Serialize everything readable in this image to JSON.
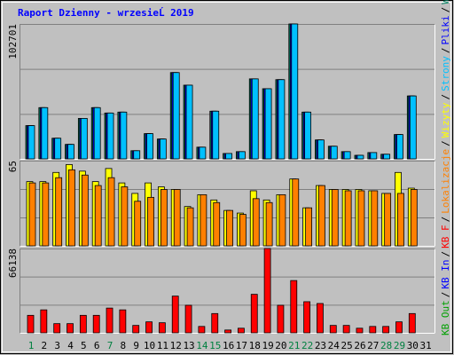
{
  "title": "Raport Dzienny -  wrzesieĹ  2019",
  "categories": [
    "1",
    "2",
    "3",
    "4",
    "5",
    "6",
    "7",
    "8",
    "9",
    "10",
    "11",
    "12",
    "13",
    "14",
    "15",
    "16",
    "17",
    "18",
    "19",
    "20",
    "21",
    "22",
    "23",
    "24",
    "25",
    "26",
    "27",
    "28",
    "29",
    "30",
    "31"
  ],
  "category_colors": [
    "#008040",
    "#000000",
    "#000000",
    "#000000",
    "#000000",
    "#000000",
    "#008040",
    "#000000",
    "#000000",
    "#000000",
    "#000000",
    "#000000",
    "#000000",
    "#008040",
    "#008040",
    "#000000",
    "#000000",
    "#000000",
    "#000000",
    "#000000",
    "#008040",
    "#008040",
    "#000000",
    "#000000",
    "#000000",
    "#000000",
    "#000000",
    "#008040",
    "#008040",
    "#000000",
    "#000000"
  ],
  "legend_separator": "/",
  "chart_data": [
    {
      "type": "bar",
      "ylim": [
        0,
        102701
      ],
      "yticks": [
        102701
      ],
      "grid_divisions": 3,
      "series": [
        {
          "name": "Wywołania",
          "color": "#008060",
          "values": [
            25300,
            39000,
            15700,
            11000,
            30800,
            39000,
            34900,
            35600,
            6200,
            19200,
            15100,
            65700,
            56100,
            8900,
            36300,
            4100,
            5500,
            60900,
            53400,
            60300,
            102701,
            35600,
            14400,
            9600,
            5500,
            2700,
            4800,
            3500,
            18500,
            47900,
            null
          ]
        },
        {
          "name": "Pliki",
          "color": "#0000ff",
          "values": [
            25300,
            39000,
            15700,
            11000,
            30800,
            39000,
            34900,
            35600,
            6200,
            19200,
            15100,
            65700,
            56100,
            8900,
            36300,
            4100,
            5500,
            60900,
            53400,
            60300,
            102701,
            35600,
            14400,
            9600,
            5500,
            2700,
            4800,
            3500,
            18500,
            47900,
            null
          ]
        },
        {
          "name": "Strony",
          "color": "#00c0ff",
          "values": [
            25300,
            39000,
            15700,
            11000,
            30800,
            39000,
            34900,
            35600,
            6200,
            19200,
            15100,
            65700,
            56100,
            8900,
            36300,
            4100,
            5500,
            60900,
            53400,
            60300,
            102701,
            35600,
            14400,
            9600,
            5500,
            2700,
            4800,
            3500,
            18500,
            47900,
            null
          ]
        }
      ]
    },
    {
      "type": "bar",
      "ylim": [
        0,
        65
      ],
      "yticks": [
        65
      ],
      "grid_divisions": 3,
      "series": [
        {
          "name": "Wizyty",
          "color": "#ffff00",
          "values": [
            49,
            49,
            56,
            62,
            57,
            49,
            59,
            48,
            40,
            48,
            45,
            43,
            30,
            39,
            35,
            27,
            25,
            42,
            35,
            39,
            51,
            29,
            46,
            43,
            43,
            43,
            42,
            40,
            56,
            44,
            null
          ]
        },
        {
          "name": "Lokalizacje",
          "color": "#ff8000",
          "values": [
            48,
            48,
            52,
            58,
            54,
            46,
            52,
            45,
            34,
            37,
            43,
            43,
            29,
            39,
            33,
            27,
            24,
            36,
            33,
            39,
            51,
            29,
            46,
            43,
            42,
            42,
            42,
            40,
            40,
            43,
            null
          ]
        }
      ]
    },
    {
      "type": "bar",
      "ylim": [
        0,
        66138
      ],
      "yticks": [
        66138
      ],
      "grid_divisions": 3,
      "series": [
        {
          "name": "KB F",
          "color": "#ff0000",
          "values": [
            13700,
            18000,
            7200,
            7200,
            13700,
            13700,
            19400,
            18000,
            5800,
            8600,
            7900,
            28800,
            21600,
            5000,
            15100,
            2200,
            3600,
            30200,
            66138,
            21600,
            41000,
            24400,
            23000,
            5800,
            5800,
            3600,
            5000,
            5000,
            8600,
            15100,
            null
          ]
        }
      ],
      "legend_only": [
        {
          "name": "KB In",
          "color": "#0000ff"
        },
        {
          "name": "KB Out",
          "color": "#00a000"
        }
      ]
    }
  ]
}
